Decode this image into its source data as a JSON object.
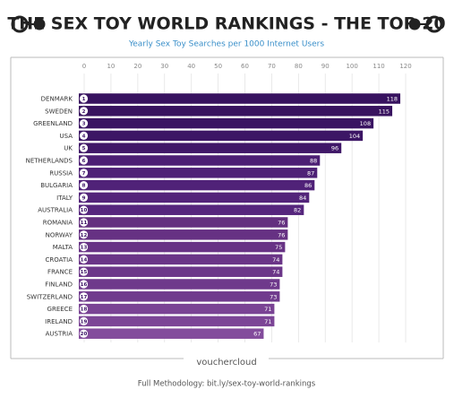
{
  "chart_data": {
    "type": "bar",
    "orientation": "horizontal",
    "title": "THE SEX TOY WORLD RANKINGS - THE TOP 20",
    "subtitle": "Yearly Sex Toy Searches per 1000 Internet Users",
    "categories": [
      "DENMARK",
      "SWEDEN",
      "GREENLAND",
      "USA",
      "UK",
      "NETHERLANDS",
      "RUSSIA",
      "BULGARIA",
      "ITALY",
      "AUSTRALIA",
      "ROMANIA",
      "NORWAY",
      "MALTA",
      "CROATIA",
      "FRANCE",
      "FINLAND",
      "SWITZERLAND",
      "GREECE",
      "IRELAND",
      "AUSTRIA"
    ],
    "ranks": [
      1,
      2,
      3,
      4,
      5,
      6,
      7,
      8,
      9,
      10,
      11,
      12,
      13,
      14,
      15,
      16,
      17,
      18,
      19,
      20
    ],
    "values": [
      118,
      115,
      108,
      104,
      96,
      88,
      87,
      86,
      84,
      82,
      76,
      76,
      75,
      74,
      74,
      73,
      73,
      71,
      71,
      67
    ],
    "colors": [
      "#37125f",
      "#38135f",
      "#3a1462",
      "#3c1665",
      "#401868",
      "#4c1f74",
      "#4e2176",
      "#502278",
      "#53247a",
      "#56267d",
      "#64307f",
      "#663183",
      "#683385",
      "#6a3587",
      "#6c3789",
      "#6e398b",
      "#703b8d",
      "#7a4394",
      "#7c4596",
      "#834c9c"
    ],
    "xlim": [
      0,
      120
    ],
    "xticks": [
      0,
      10,
      20,
      30,
      40,
      50,
      60,
      70,
      80,
      90,
      100,
      110,
      120
    ],
    "grid": true
  },
  "footer": {
    "logo": "vouchercloud",
    "methodology": "Full Methodology: bit.ly/sex-toy-world-rankings"
  }
}
